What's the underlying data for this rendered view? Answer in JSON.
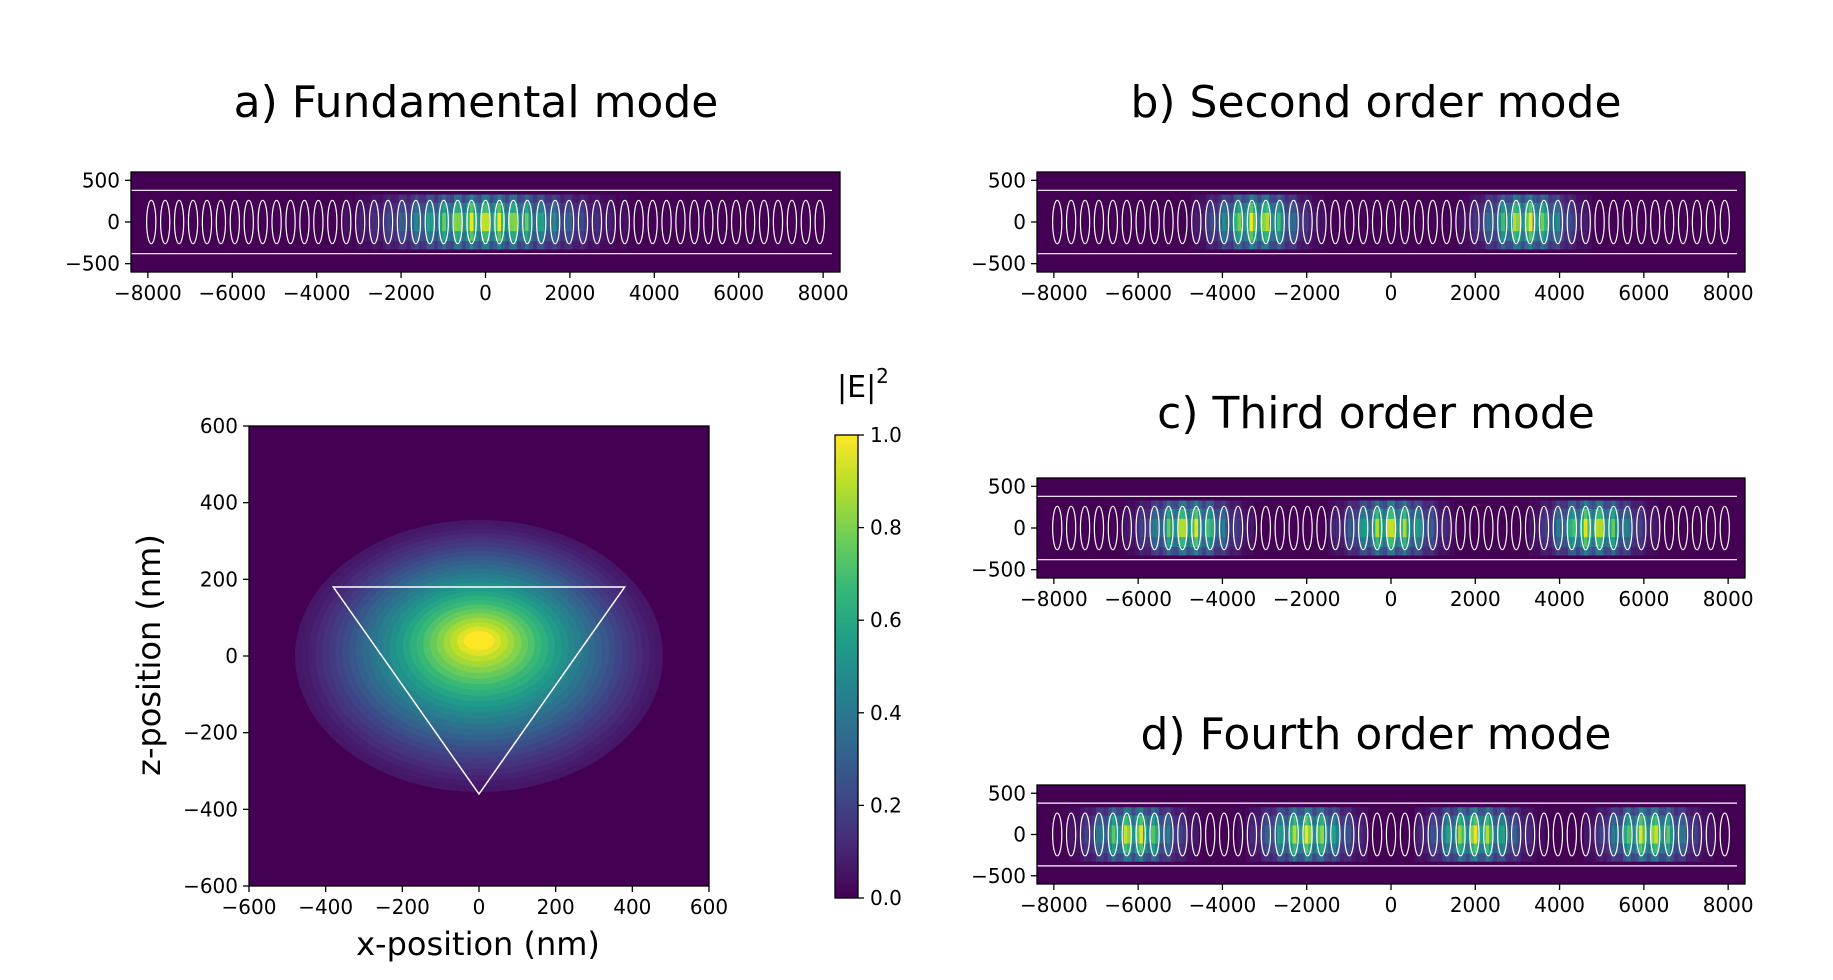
{
  "colors": {
    "cmap": [
      "#440154",
      "#482878",
      "#3e4989",
      "#31688e",
      "#26828e",
      "#1f9e89",
      "#35b779",
      "#6ece58",
      "#b5de2b",
      "#fde725"
    ],
    "overlay": "#ffffff"
  },
  "colorbar": {
    "label_base": "|E|",
    "label_sup": "2"
  },
  "chart_data": [
    {
      "type": "heatmap",
      "title": "a) Fundamental mode",
      "xlim": [
        -8400,
        8400
      ],
      "ylim": [
        -600,
        600
      ],
      "xticks": [
        -8000,
        -6000,
        -4000,
        -2000,
        0,
        2000,
        4000,
        6000,
        8000
      ],
      "xtick_labels": [
        "−8000",
        "−6000",
        "−4000",
        "−2000",
        "0",
        "2000",
        "4000",
        "6000",
        "8000"
      ],
      "yticks": [
        500,
        0,
        -500
      ],
      "ytick_labels": [
        "500",
        "0",
        "−500"
      ],
      "mode_order": 1,
      "field_centers_nm": [
        0
      ],
      "field_peak": 1.0,
      "waveguide_edges_nm": [
        380,
        -380
      ],
      "hole_pitch_nm": 330,
      "hole_count": 49
    },
    {
      "type": "heatmap",
      "title": "b) Second order mode",
      "xlim": [
        -8400,
        8400
      ],
      "ylim": [
        -600,
        600
      ],
      "xticks": [
        -8000,
        -6000,
        -4000,
        -2000,
        0,
        2000,
        4000,
        6000,
        8000
      ],
      "xtick_labels": [
        "−8000",
        "−6000",
        "−4000",
        "−2000",
        "0",
        "2000",
        "4000",
        "6000",
        "8000"
      ],
      "yticks": [
        500,
        0,
        -500
      ],
      "ytick_labels": [
        "500",
        "0",
        "−500"
      ],
      "mode_order": 2,
      "field_centers_nm": [
        -3200,
        3200
      ],
      "field_peak": 1.0,
      "waveguide_edges_nm": [
        380,
        -380
      ],
      "hole_pitch_nm": 330,
      "hole_count": 49
    },
    {
      "type": "heatmap",
      "title": "c) Third order mode",
      "xlim": [
        -8400,
        8400
      ],
      "ylim": [
        -600,
        600
      ],
      "xticks": [
        -8000,
        -6000,
        -4000,
        -2000,
        0,
        2000,
        4000,
        6000,
        8000
      ],
      "xtick_labels": [
        "−8000",
        "−6000",
        "−4000",
        "−2000",
        "0",
        "2000",
        "4000",
        "6000",
        "8000"
      ],
      "yticks": [
        500,
        0,
        -500
      ],
      "ytick_labels": [
        "500",
        "0",
        "−500"
      ],
      "mode_order": 3,
      "field_centers_nm": [
        -4800,
        0,
        4800
      ],
      "field_peak": 1.0,
      "waveguide_edges_nm": [
        380,
        -380
      ],
      "hole_pitch_nm": 330,
      "hole_count": 49
    },
    {
      "type": "heatmap",
      "title": "d) Fourth order mode",
      "xlim": [
        -8400,
        8400
      ],
      "ylim": [
        -600,
        600
      ],
      "xticks": [
        -8000,
        -6000,
        -4000,
        -2000,
        0,
        2000,
        4000,
        6000,
        8000
      ],
      "xtick_labels": [
        "−8000",
        "−6000",
        "−4000",
        "−2000",
        "0",
        "2000",
        "4000",
        "6000",
        "8000"
      ],
      "yticks": [
        500,
        0,
        -500
      ],
      "ytick_labels": [
        "500",
        "0",
        "−500"
      ],
      "mode_order": 4,
      "field_centers_nm": [
        -6100,
        -2000,
        2000,
        6100
      ],
      "field_peak": 1.0,
      "waveguide_edges_nm": [
        380,
        -380
      ],
      "hole_pitch_nm": 330,
      "hole_count": 49
    },
    {
      "type": "heatmap",
      "title": "",
      "xlabel": "x-position (nm)",
      "ylabel": "z-position (nm)",
      "xlim": [
        -600,
        600
      ],
      "ylim": [
        -600,
        600
      ],
      "xticks": [
        -600,
        -400,
        -200,
        0,
        200,
        400,
        600
      ],
      "xtick_labels": [
        "−600",
        "−400",
        "−200",
        "0",
        "200",
        "400",
        "600"
      ],
      "yticks": [
        600,
        400,
        200,
        0,
        -200,
        -400,
        -600
      ],
      "ytick_labels": [
        "600",
        "400",
        "200",
        "0",
        "−200",
        "−400",
        "−600"
      ],
      "field_center_nm": [
        0,
        40
      ],
      "field_peak": 1.0,
      "triangle_vertices_nm": [
        [
          -380,
          180
        ],
        [
          380,
          180
        ],
        [
          0,
          -360
        ]
      ]
    },
    {
      "type": "colorbar",
      "range": [
        0.0,
        1.0
      ],
      "ticks": [
        1.0,
        0.8,
        0.6,
        0.4,
        0.2,
        0.0
      ],
      "tick_labels": [
        "1.0",
        "0.8",
        "0.6",
        "0.4",
        "0.2",
        "0.0"
      ]
    }
  ]
}
